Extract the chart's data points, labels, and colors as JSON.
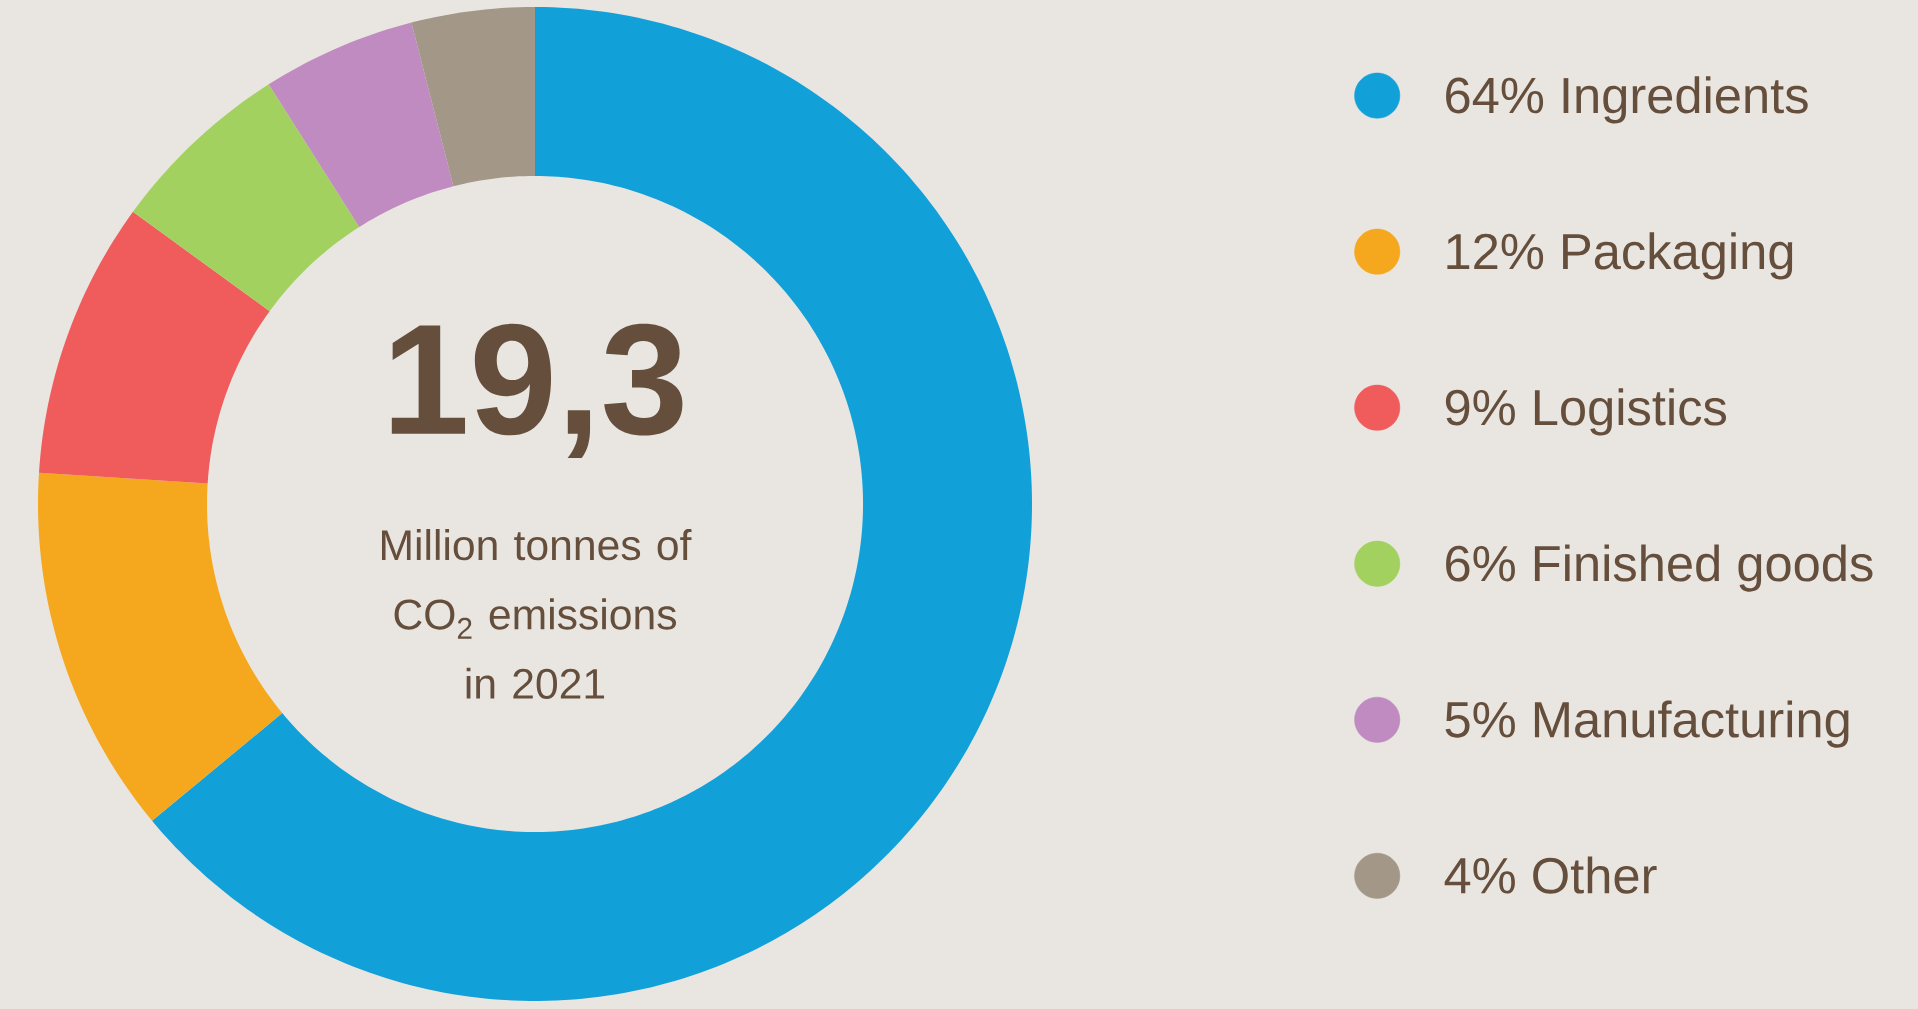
{
  "chart_data": {
    "type": "donut",
    "categories": [
      "64% Ingredients",
      "12% Packaging",
      "9% Logistics",
      "6% Finished goods",
      "5% Manufacturing",
      "4% Other"
    ],
    "values": [
      64,
      12,
      9,
      6,
      5,
      4
    ],
    "colors": [
      "#12a0d9",
      "#f5a81d",
      "#f05c5c",
      "#a3d160",
      "#c08bc1",
      "#a39888"
    ],
    "legend": "right",
    "annotations": [
      "19,3",
      "Million tonnes of CO$_{2}$ emissions in 2021"
    ]
  }
}
